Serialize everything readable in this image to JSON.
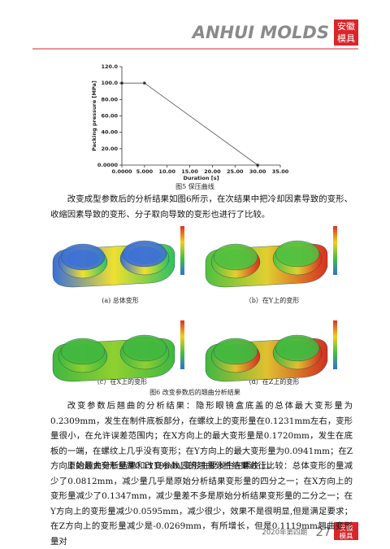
{
  "header": {
    "brand": "ANHUI MOLDS",
    "badge": [
      "安徽",
      "模具"
    ]
  },
  "chart_data": {
    "type": "line",
    "ylabel": "Packing pressure [MPa]",
    "xlabel": "Duration [s]",
    "x": [
      0,
      5,
      30
    ],
    "values": [
      100,
      100,
      0
    ],
    "color": "#555555",
    "xlim": [
      0,
      35
    ],
    "ylim": [
      0,
      120
    ],
    "xticks": [
      {
        "value": 0,
        "label": "0.0000"
      },
      {
        "value": 5,
        "label": "5.000"
      },
      {
        "value": 10,
        "label": "10.00"
      },
      {
        "value": 15,
        "label": "15.00"
      },
      {
        "value": 20,
        "label": "20.00"
      },
      {
        "value": 25,
        "label": "25.00"
      },
      {
        "value": 30,
        "label": "30.00"
      },
      {
        "value": 35,
        "label": "35.00"
      }
    ],
    "yticks": [
      {
        "value": 0,
        "label": "0.0000"
      },
      {
        "value": 20,
        "label": "20.00"
      },
      {
        "value": 40,
        "label": "40.00"
      },
      {
        "value": 60,
        "label": "60.00"
      },
      {
        "value": 80,
        "label": "80.00"
      },
      {
        "value": 100,
        "label": "100.0"
      },
      {
        "value": 120,
        "label": "120.0"
      }
    ]
  },
  "figure5_caption": "图5 保压曲线",
  "intro": "改变成型参数后的分析结果如图6所示，在次结果中把冷却因素导致的变形、收缩因素导致的变形、分子取向导致的变形也进行了比较。",
  "figure6": {
    "panels": [
      "(a) 总体变形",
      "（b）在Y上的变形",
      "（c）在X上的变形",
      "（d）在Z上的变形"
    ],
    "caption": "图6 改变参数后的翘曲分析结果"
  },
  "paragraphs": [
    "改变参数后翘曲的分析结果：隐形眼镜盒底盖的总体最大变形量为0.2309mm，发生在制件底板部分，在螺纹上的变形量在0.1231mm左右，变形量很小，在允许误差范围内；在X方向上的最大变形量是0.1720mm，发生在底板的一端，在螺纹上几乎没有变形；在Y方向上的最大变形量为0.0941mm；在Z方向上的最大变形量是0.1119mm,变形主要发生在螺纹上。",
    "原始翘曲分析结果和改变参数后的翘曲分析结果进行比较：总体变形的量减少了0.0812mm，减少量几乎是原始分析结果变形量的四分之一；在X方向上的变形量减少了0.1347mm，减少量差不多是原始分析结果变形量的二分之一；在Y方向上的变形量减少0.0595mm，减少很少，效果不是很明显,但是满足要求；在Z方向上的变形量减少是-0.0269mm，有所增长，但是0.1119mm翘曲变形量对"
  ],
  "footer": {
    "issue": "2020年第四期",
    "page": "27",
    "badge": [
      "安徽",
      "模具"
    ]
  }
}
